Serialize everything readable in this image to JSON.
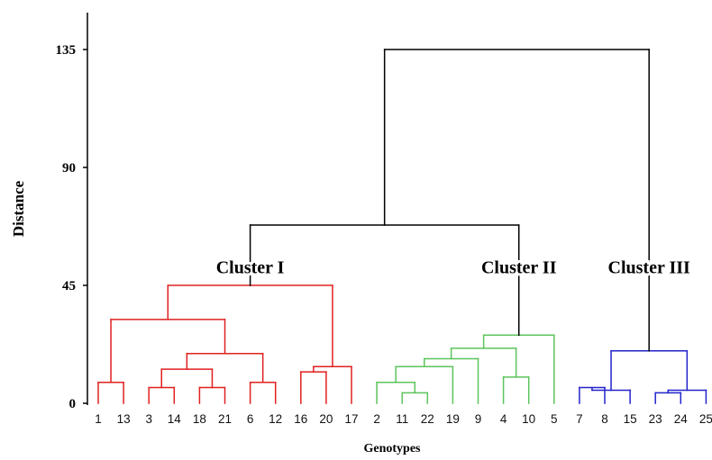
{
  "chart_data": {
    "type": "dendrogram",
    "title": "",
    "xlabel": "Genotypes",
    "ylabel": "Distance",
    "ylim": [
      0,
      135
    ],
    "yticks": [
      0,
      45,
      90,
      135
    ],
    "leaves": [
      "1",
      "13",
      "3",
      "14",
      "18",
      "21",
      "6",
      "12",
      "16",
      "20",
      "17",
      "2",
      "11",
      "22",
      "19",
      "9",
      "4",
      "10",
      "5",
      "7",
      "8",
      "15",
      "23",
      "24",
      "25"
    ],
    "clusters": [
      {
        "name": "Cluster I",
        "color": "#e0201f"
      },
      {
        "name": "Cluster II",
        "color": "#5cc45c"
      },
      {
        "name": "Cluster III",
        "color": "#2323cc"
      }
    ],
    "merges": [
      {
        "left": "1",
        "right": "13",
        "height": 8,
        "color": "#e0201f"
      },
      {
        "left": "3",
        "right": "14",
        "height": 6,
        "color": "#e0201f"
      },
      {
        "left": "18",
        "right": "21",
        "height": 6,
        "color": "#e0201f"
      },
      {
        "left": "(3,14)",
        "right": "(18,21)",
        "height": 13,
        "color": "#e0201f"
      },
      {
        "left": "6",
        "right": "12",
        "height": 8,
        "color": "#e0201f"
      },
      {
        "left": "(3,14,18,21)",
        "right": "(6,12)",
        "height": 19,
        "color": "#e0201f"
      },
      {
        "left": "(1,13)",
        "right": "(3,14,18,21,6,12)",
        "height": 32,
        "color": "#e0201f"
      },
      {
        "left": "16",
        "right": "20",
        "height": 12,
        "color": "#e0201f"
      },
      {
        "left": "(16,20)",
        "right": "17",
        "height": 14,
        "color": "#e0201f"
      },
      {
        "left": "(1..12)",
        "right": "(16,20,17)",
        "height": 45,
        "color": "#e0201f"
      },
      {
        "left": "11",
        "right": "22",
        "height": 4,
        "color": "#5cc45c"
      },
      {
        "left": "2",
        "right": "(11,22)",
        "height": 8,
        "color": "#5cc45c"
      },
      {
        "left": "(2,11,22)",
        "right": "19",
        "height": 14,
        "color": "#5cc45c"
      },
      {
        "left": "(2,11,22,19)",
        "right": "9",
        "height": 17,
        "color": "#5cc45c"
      },
      {
        "left": "4",
        "right": "10",
        "height": 10,
        "color": "#5cc45c"
      },
      {
        "left": "(2,11,22,19,9)",
        "right": "(4,10)",
        "height": 21,
        "color": "#5cc45c"
      },
      {
        "left": "(2..10)",
        "right": "5",
        "height": 26,
        "color": "#5cc45c"
      },
      {
        "left": "7",
        "right": "8",
        "height": 6,
        "color": "#2323cc"
      },
      {
        "left": "(7,8)",
        "right": "15",
        "height": 5,
        "color": "#2323cc"
      },
      {
        "left": "23",
        "right": "24",
        "height": 4,
        "color": "#2323cc"
      },
      {
        "left": "(23,24)",
        "right": "25",
        "height": 5,
        "color": "#2323cc"
      },
      {
        "left": "(7,8,15)",
        "right": "(23,24,25)",
        "height": 20,
        "color": "#2323cc"
      },
      {
        "left": "Cluster I",
        "right": "Cluster II",
        "height": 68,
        "color": "#000000"
      },
      {
        "left": "(Cluster I, Cluster II)",
        "right": "Cluster III",
        "height": 135,
        "color": "#000000"
      }
    ]
  }
}
